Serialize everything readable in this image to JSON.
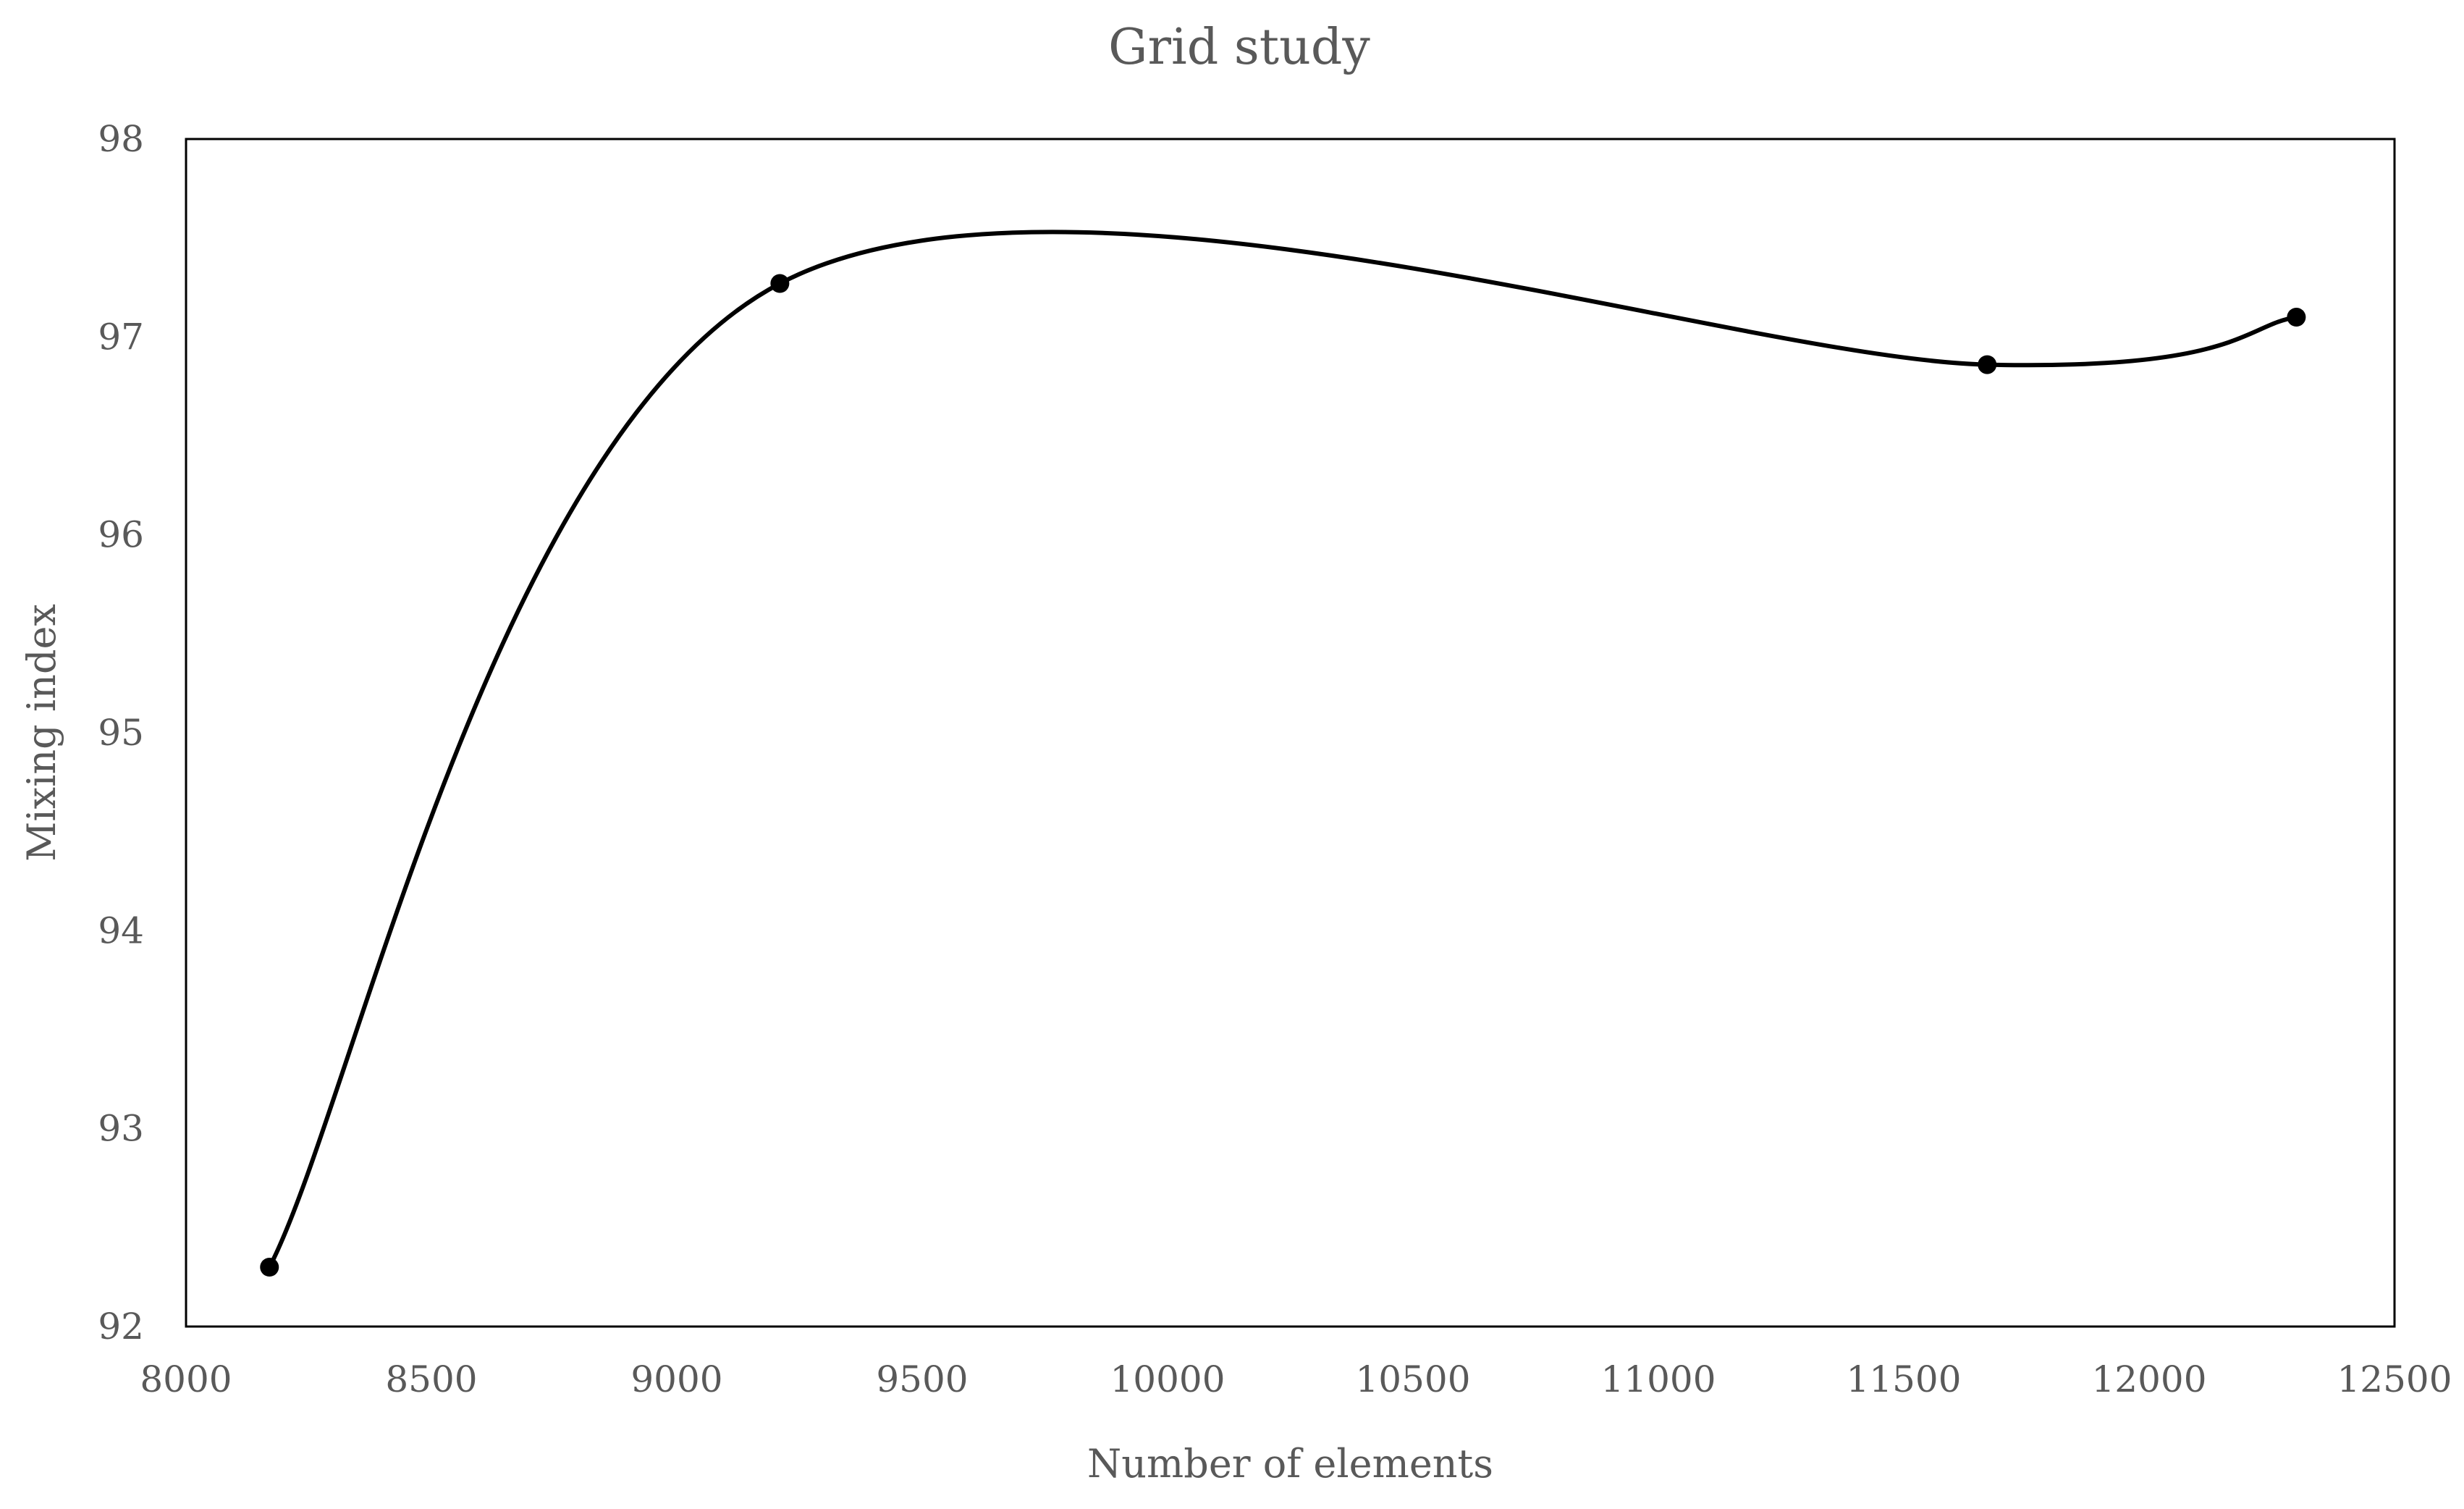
{
  "chart_data": {
    "type": "scatter",
    "title": "Grid study",
    "xlabel": "Number of elements",
    "ylabel": "Mixing index",
    "xlim": [
      8000,
      12500
    ],
    "ylim": [
      92,
      98
    ],
    "x_ticks": [
      "8000",
      "8500",
      "9000",
      "9500",
      "10000",
      "10500",
      "11000",
      "11500",
      "12000",
      "12500"
    ],
    "y_ticks": [
      "92",
      "93",
      "94",
      "95",
      "96",
      "97",
      "98"
    ],
    "grid": false,
    "legend": "none",
    "smooth_line": true,
    "line_color": "#000000",
    "marker_color": "#000000",
    "series": [
      {
        "x": [
          8170,
          9210,
          11670,
          12300
        ],
        "y": [
          92.3,
          97.27,
          96.86,
          97.1
        ]
      }
    ]
  }
}
